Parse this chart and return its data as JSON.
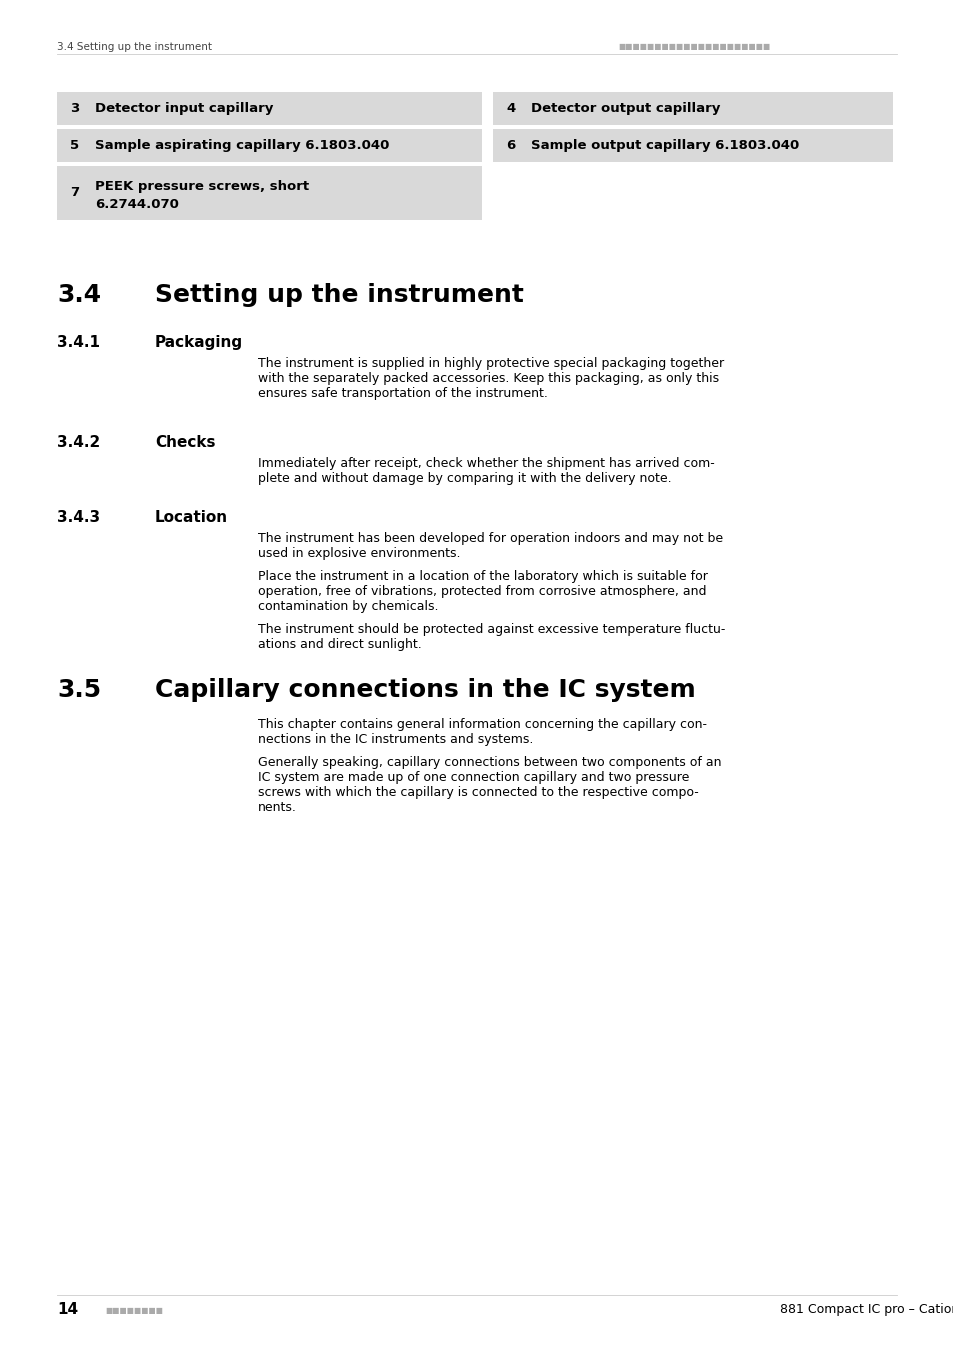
{
  "page_bg": "#ffffff",
  "table_bg": "#d9d9d9",
  "header_left": "3.4 Setting up the instrument",
  "header_dots": "■■■■■■■■■■■■■■■■■■■■■",
  "footer_num": "14",
  "footer_dots": "■■■■■■■■",
  "footer_right": "881 Compact IC pro – Cation",
  "table_rows": [
    {
      "ln": "3",
      "lt": "Detector input capillary",
      "rn": "4",
      "rt": "Detector output capillary"
    },
    {
      "ln": "5",
      "lt": "Sample aspirating capillary 6.1803.040",
      "rn": "6",
      "rt": "Sample output capillary 6.1803.040"
    },
    {
      "ln": "7",
      "lt": "PEEK pressure screws, short",
      "lt2": "6.2744.070",
      "rn": null,
      "rt": null
    }
  ],
  "s34_num": "3.4",
  "s34_title": "Setting up the instrument",
  "s341_num": "3.4.1",
  "s341_title": "Packaging",
  "s341_lines": [
    "The instrument is supplied in highly protective special packaging together",
    "with the separately packed accessories. Keep this packaging, as only this",
    "ensures safe transportation of the instrument."
  ],
  "s342_num": "3.4.2",
  "s342_title": "Checks",
  "s342_lines": [
    "Immediately after receipt, check whether the shipment has arrived com-",
    "plete and without damage by comparing it with the delivery note."
  ],
  "s343_num": "3.4.3",
  "s343_title": "Location",
  "s343_p1": [
    "The instrument has been developed for operation indoors and may not be",
    "used in explosive environments."
  ],
  "s343_p2": [
    "Place the instrument in a location of the laboratory which is suitable for",
    "operation, free of vibrations, protected from corrosive atmosphere, and",
    "contamination by chemicals."
  ],
  "s343_p3": [
    "The instrument should be protected against excessive temperature fluctu-",
    "ations and direct sunlight."
  ],
  "s35_num": "3.5",
  "s35_title": "Capillary connections in the IC system",
  "s35_p1": [
    "This chapter contains general information concerning the capillary con-",
    "nections in the IC instruments and systems."
  ],
  "s35_p2": [
    "Generally speaking, capillary connections between two components of an",
    "IC system are made up of one connection capillary and two pressure",
    "screws with which the capillary is connected to the respective compo-",
    "nents."
  ]
}
